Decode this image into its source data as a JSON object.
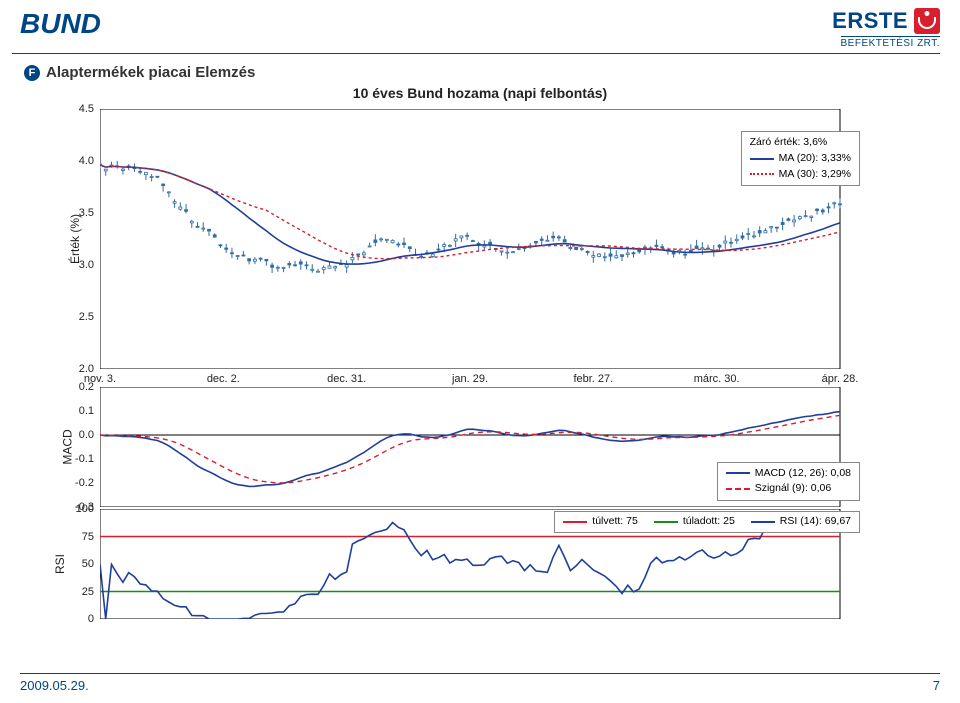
{
  "header": {
    "title": "BUND",
    "logo_text": "ERSTE",
    "logo_sub": "BEFEKTETÉSI ZRT."
  },
  "subheader": {
    "bullet": "F",
    "text": "Alaptermékek piacai Elemzés"
  },
  "chart_title": "10 éves Bund hozama (napi felbontás)",
  "colors": {
    "brand_blue": "#004684",
    "chart_blue": "#1f3f9a",
    "red": "#d91f2d",
    "green": "#1a8a1a",
    "black": "#000000",
    "candle": "#326da3",
    "axis": "#000000"
  },
  "price_chart": {
    "ylabel": "Érték (%)",
    "ylim": [
      2.0,
      4.5
    ],
    "ytick_step": 0.5,
    "yticks": [
      "4.5",
      "4.0",
      "3.5",
      "3.0",
      "2.5",
      "2.0"
    ],
    "xticks": [
      "nov. 3.",
      "dec. 2.",
      "dec. 31.",
      "jan. 29.",
      "febr. 27.",
      "márc. 30.",
      "ápr. 28."
    ],
    "x_count": 130,
    "legend": {
      "close": "Záró érték: 3,6%",
      "ma20": "MA (20): 3,33%",
      "ma30": "MA (30): 3,29%"
    },
    "close_seed": 91,
    "close_start": 3.95,
    "ma20_color": "#1f3f9a",
    "ma30_color": "#d91f2d",
    "ma30_dash": "3,3"
  },
  "macd_chart": {
    "ylabel": "MACD",
    "ylim": [
      -0.3,
      0.2
    ],
    "ytick_step": 0.1,
    "yticks": [
      "0.2",
      "0.1",
      "0.0",
      "-0.1",
      "-0.2",
      "-0.3"
    ],
    "legend": {
      "macd": "MACD (12, 26): 0,08",
      "signal": "Szignál (9): 0,06"
    },
    "macd_color": "#1f3f9a",
    "signal_color": "#d91f2d",
    "signal_dash": "5,4"
  },
  "rsi_chart": {
    "ylabel": "RSI",
    "ylim": [
      0,
      100
    ],
    "ytick_step": 25,
    "yticks": [
      "100",
      "75",
      "50",
      "25",
      "0"
    ],
    "legend": {
      "overbought": "túlvett: 75",
      "oversold": "túladott: 25",
      "rsi": "RSI (14): 69,67"
    },
    "rsi_color": "#1f3f9a",
    "ob_color": "#d91f2d",
    "os_color": "#1a8a1a"
  },
  "footer": {
    "date": "2009.05.29.",
    "page": "7"
  }
}
